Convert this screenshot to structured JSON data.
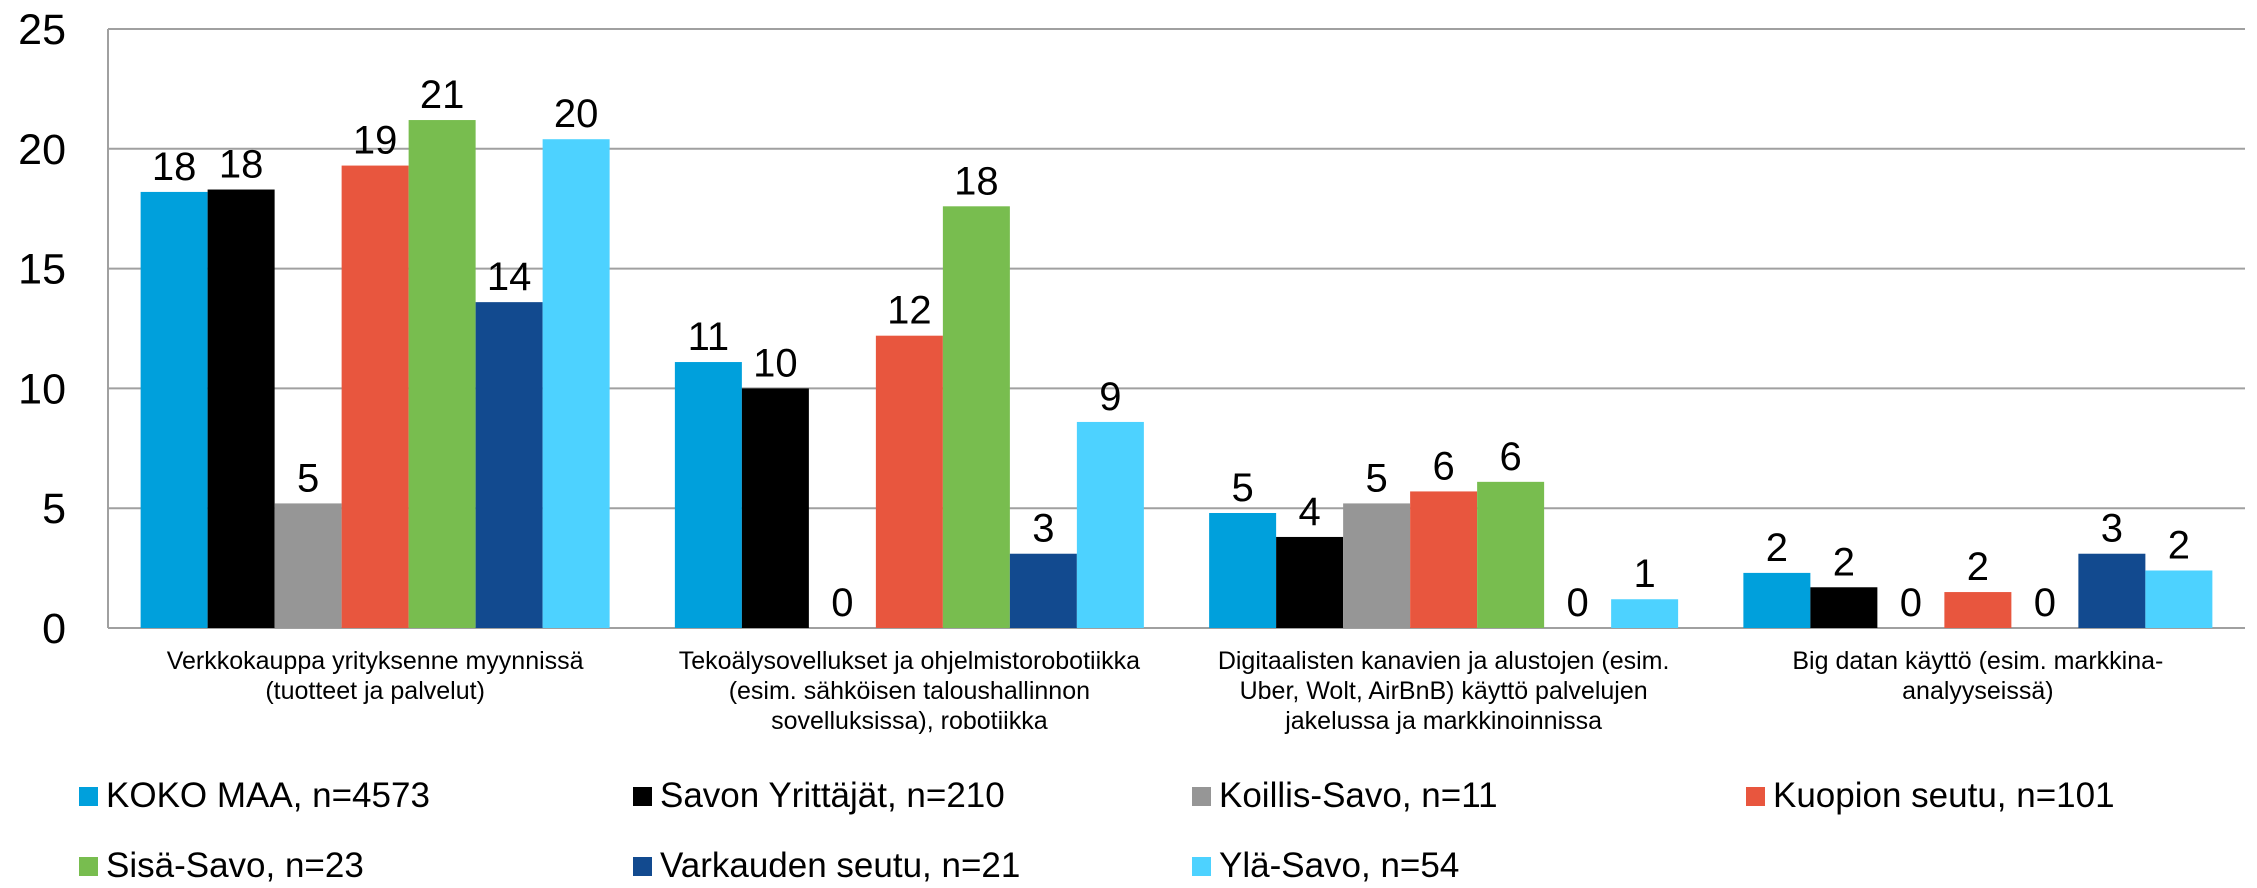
{
  "chart_data": {
    "type": "bar",
    "categories": [
      "Verkkokauppa yrityksenne myynnissä (tuotteet ja palvelut)",
      "Tekoälysovellukset ja ohjelmistorobotiikka (esim. sähköisen taloushallinnon sovelluksissa), robotiikka",
      "Digitaalisten kanavien ja alustojen (esim. Uber, Wolt, AirBnB) käyttö palvelujen jakelussa ja markkinoinnissa",
      "Big datan käyttö (esim. markkina-analyyseissä)"
    ],
    "series": [
      {
        "name": "KOKO MAA, n=4573",
        "color": "#00a0dc",
        "values": [
          18.2,
          11.1,
          4.8,
          2.3
        ],
        "value_labels": [
          "18",
          "11",
          "5",
          "2"
        ]
      },
      {
        "name": "Savon Yrittäjät, n=210",
        "color": "#000000",
        "values": [
          18.3,
          10.0,
          3.8,
          1.7
        ],
        "value_labels": [
          "18",
          "10",
          "4",
          "2"
        ]
      },
      {
        "name": "Koillis-Savo, n=11",
        "color": "#969696",
        "values": [
          5.2,
          0,
          5.2,
          0
        ],
        "value_labels": [
          "5",
          "0",
          "5",
          "0"
        ]
      },
      {
        "name": "Kuopion seutu, n=101",
        "color": "#e8563e",
        "values": [
          19.3,
          12.2,
          5.7,
          1.5
        ],
        "value_labels": [
          "19",
          "12",
          "6",
          "2"
        ]
      },
      {
        "name": "Sisä-Savo, n=23",
        "color": "#78bd4f",
        "values": [
          21.2,
          17.6,
          6.1,
          0
        ],
        "value_labels": [
          "21",
          "18",
          "6",
          "0"
        ]
      },
      {
        "name": "Varkauden seutu, n=21",
        "color": "#124a8f",
        "values": [
          13.6,
          3.1,
          0,
          3.1
        ],
        "value_labels": [
          "14",
          "3",
          "0",
          "3"
        ]
      },
      {
        "name": "Ylä-Savo, n=54",
        "color": "#4dd2ff",
        "values": [
          20.4,
          8.6,
          1.2,
          2.4
        ],
        "value_labels": [
          "20",
          "9",
          "1",
          "2"
        ]
      }
    ],
    "ylim": [
      0,
      25
    ],
    "yticks": [
      0,
      5,
      10,
      15,
      20,
      25
    ],
    "grid": true
  }
}
